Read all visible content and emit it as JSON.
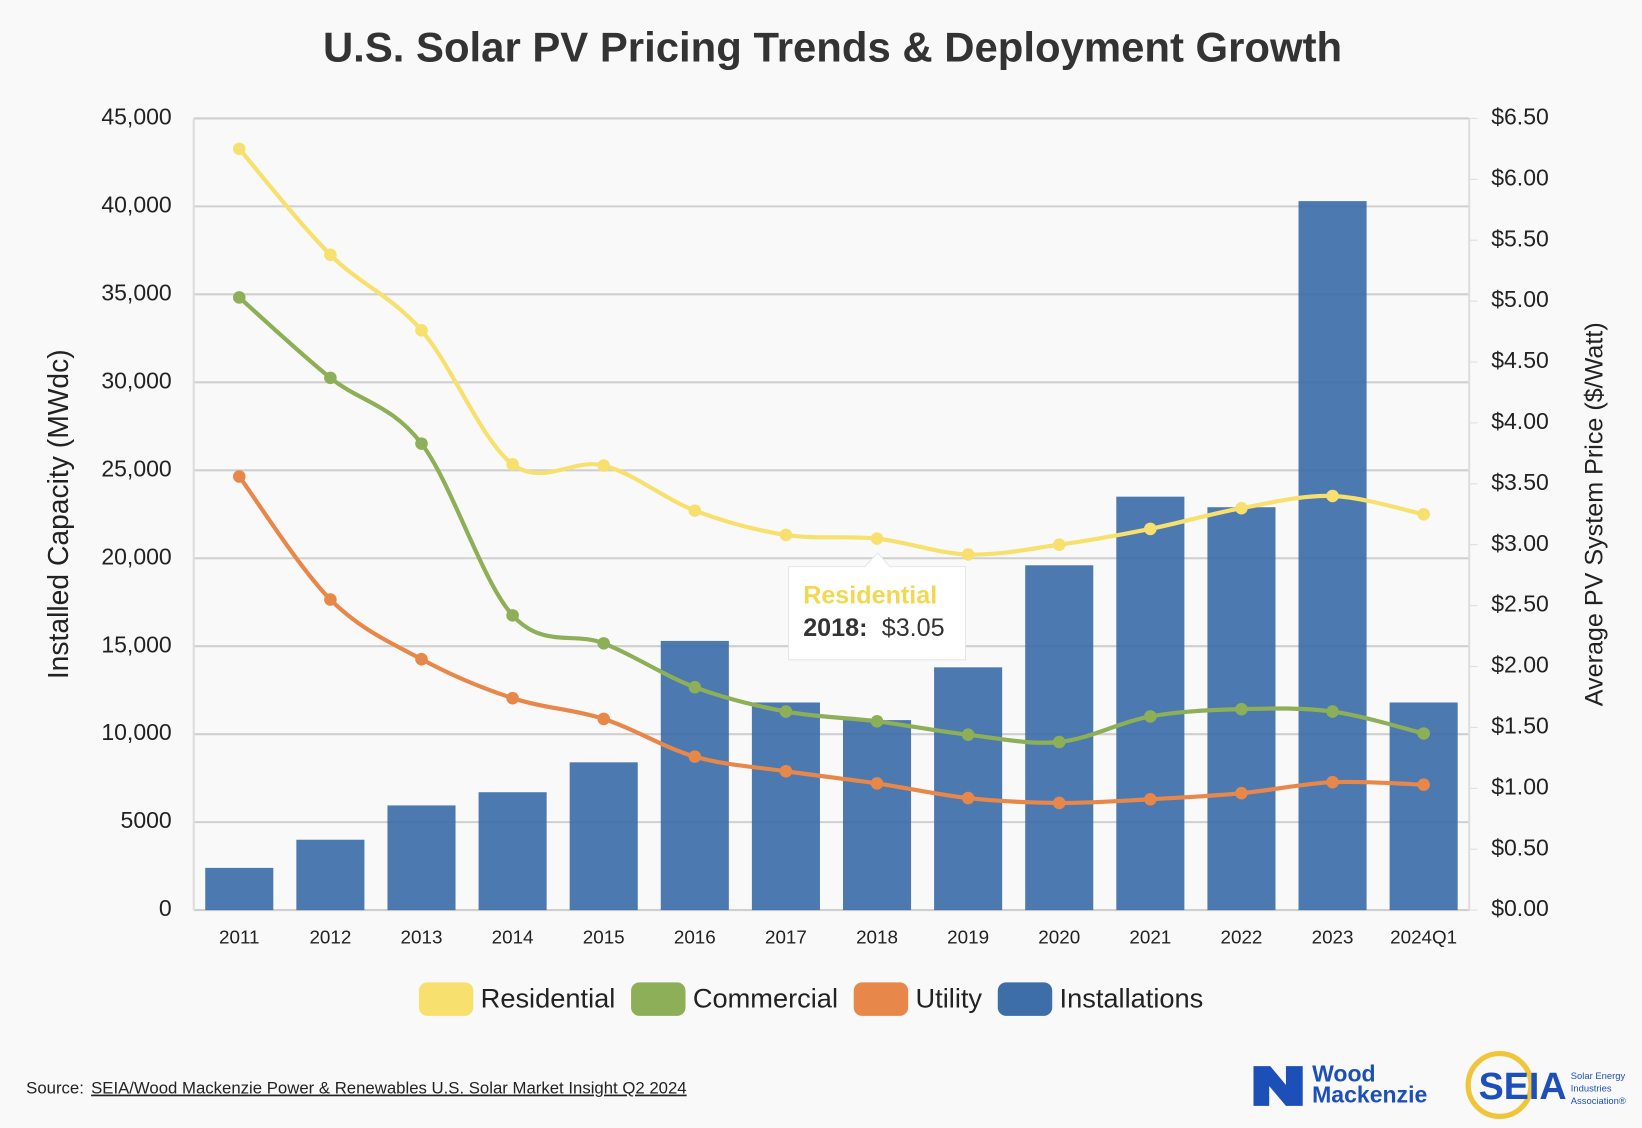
{
  "chart_data": {
    "type": "bar",
    "title": "U.S. Solar PV Pricing Trends & Deployment Growth",
    "y_label": "Installed Capacity (MWdc)",
    "y2_label": "Average PV System Price ($/Watt)",
    "categories": [
      "2011",
      "2012",
      "2013",
      "2014",
      "2015",
      "2016",
      "2017",
      "2018",
      "2019",
      "2020",
      "2021",
      "2022",
      "2023",
      "2024Q1"
    ],
    "series": [
      {
        "name": "Residential",
        "type": "line",
        "axis": "y2",
        "color": "#f7e06e",
        "values": [
          6.25,
          5.38,
          4.76,
          3.66,
          3.65,
          3.28,
          3.08,
          3.05,
          2.92,
          3.0,
          3.13,
          3.3,
          3.4,
          3.25
        ]
      },
      {
        "name": "Commercial",
        "type": "line",
        "axis": "y2",
        "color": "#8daf57",
        "values": [
          5.03,
          4.37,
          3.83,
          2.42,
          2.19,
          1.83,
          1.63,
          1.55,
          1.44,
          1.38,
          1.59,
          1.65,
          1.63,
          1.45
        ]
      },
      {
        "name": "Utility",
        "type": "line",
        "axis": "y2",
        "color": "#e8874a",
        "values": [
          3.56,
          2.55,
          2.06,
          1.74,
          1.57,
          1.26,
          1.14,
          1.04,
          0.92,
          0.88,
          0.91,
          0.96,
          1.05,
          1.03
        ]
      },
      {
        "name": "Installations",
        "type": "bar",
        "axis": "y",
        "color": "#3d6ea8",
        "values": [
          2400,
          4000,
          5950,
          6700,
          8400,
          15300,
          11800,
          10800,
          13800,
          19600,
          23500,
          22900,
          40300,
          11800
        ]
      }
    ],
    "ylim": [
      0,
      45000
    ],
    "yticks": [
      0,
      5000,
      {
        "value": 10000,
        "label": "10,000"
      },
      {
        "value": 15000,
        "label": "15,000"
      },
      {
        "value": 20000,
        "label": "20,000"
      },
      {
        "value": 25000,
        "label": "25,000"
      },
      {
        "value": 30000,
        "label": "30,000"
      },
      {
        "value": 35000,
        "label": "35,000"
      },
      {
        "value": 40000,
        "label": "40,000"
      },
      {
        "value": 45000,
        "label": "45,000"
      }
    ],
    "y2lim": [
      0,
      6.5
    ],
    "y2ticks": [
      {
        "value": 0,
        "label": "$0.00"
      },
      {
        "value": 0.5,
        "label": "$0.50"
      },
      {
        "value": 1,
        "label": "$1.00"
      },
      {
        "value": 1.5,
        "label": "$1.50"
      },
      {
        "value": 2,
        "label": "$2.00"
      },
      {
        "value": 2.5,
        "label": "$2.50"
      },
      {
        "value": 3,
        "label": "$3.00"
      },
      {
        "value": 3.5,
        "label": "$3.50"
      },
      {
        "value": 4,
        "label": "$4.00"
      },
      {
        "value": 4.5,
        "label": "$4.50"
      },
      {
        "value": 5,
        "label": "$5.00"
      },
      {
        "value": 5.5,
        "label": "$5.50"
      },
      {
        "value": 6,
        "label": "$6.00"
      },
      {
        "value": 6.5,
        "label": "$6.50"
      }
    ],
    "grid": true,
    "legend": "bottom",
    "tooltip": {
      "title": "Residential",
      "label": "2018:",
      "text": "$3.05"
    },
    "source": {
      "prefix": "Source:",
      "link": "SEIA/Wood Mackenzie Power & Renewables U.S. Solar Market Insight Q2 2024"
    },
    "logos": {
      "wood_1": "Wood",
      "wood_2": "Mackenzie",
      "seia": "SEIA",
      "seia_1": "Solar Energy",
      "seia_2": "Industries",
      "seia_3": "Association®"
    }
  }
}
